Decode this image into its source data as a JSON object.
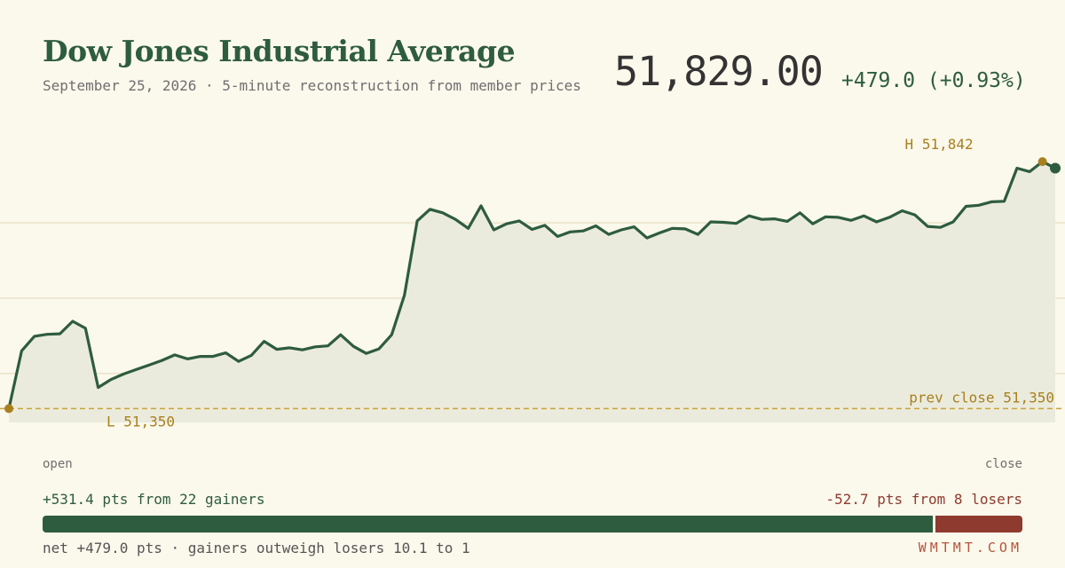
{
  "header": {
    "title": "Dow Jones Industrial Average",
    "subtitle": "September 25, 2026 · 5-minute reconstruction from member prices",
    "price": "51,829.00",
    "change": "+479.0 (+0.93%)"
  },
  "chart_data": {
    "type": "area",
    "title": "Dow Jones Industrial Average",
    "ylim": [
      51310,
      51920
    ],
    "grid": true,
    "values": [
      51350,
      51465,
      51494,
      51498,
      51499,
      51524,
      51510,
      51392,
      51408,
      51419,
      51428,
      51437,
      51446,
      51457,
      51449,
      51454,
      51454,
      51461,
      51444,
      51456,
      51484,
      51468,
      51471,
      51467,
      51473,
      51475,
      51497,
      51474,
      51460,
      51469,
      51497,
      51576,
      51724,
      51747,
      51740,
      51727,
      51709,
      51754,
      51706,
      51718,
      51724,
      51707,
      51715,
      51693,
      51702,
      51704,
      51714,
      51697,
      51706,
      51712,
      51690,
      51700,
      51709,
      51708,
      51697,
      51722,
      51721,
      51719,
      51734,
      51727,
      51728,
      51723,
      51740,
      51718,
      51732,
      51731,
      51725,
      51734,
      51722,
      51731,
      51744,
      51736,
      51713,
      51711,
      51722,
      51753,
      51755,
      51762,
      51763,
      51829,
      51822,
      51842,
      51829
    ],
    "prev_close": 51350,
    "prev_close_label": "prev close 51,350",
    "high": {
      "value": 51842,
      "label": "H 51,842"
    },
    "low": {
      "value": 51350,
      "label": "L 51,350"
    },
    "xlabels": {
      "start": "open",
      "end": "close"
    },
    "colors": {
      "line": "#2e5c3e",
      "fill": "#ebebdd",
      "marker": "#a8801e",
      "grid": "#e9e4c9",
      "prev_close": "#c9a33a"
    }
  },
  "breadth": {
    "gainers": "+531.4 pts from 22 gainers",
    "losers": "-52.7 pts from 8 losers",
    "gain_points": 531.4,
    "loss_points": 52.7,
    "net": "net +479.0 pts · gainers outweigh losers 10.1 to 1"
  },
  "brand": "WMTMT.COM"
}
